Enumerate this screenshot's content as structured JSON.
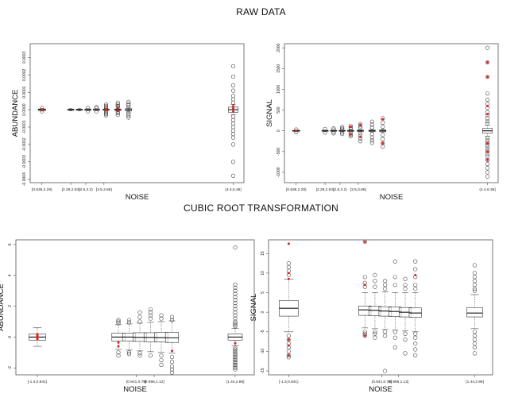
{
  "headings": {
    "top": "RAW DATA",
    "bottom": "CUBIC ROOT TRANSFORMATION"
  },
  "chart_data": [
    {
      "type": "boxplot",
      "panel": "raw-abundance",
      "xlabel": "NOISE",
      "ylabel": "ABUNDANCE",
      "ylim": [
        -0.00042,
        0.00038
      ],
      "yticks": [
        -0.0004,
        -0.0003,
        -0.0002,
        -0.0001,
        0,
        0.0001,
        0.0002,
        0.0003
      ],
      "ytick_labels": [
        "-0.0004",
        "-0.0003",
        "-0.0002",
        "-0.0001",
        "0.0000",
        "0.0001",
        "0.0002",
        "0.0003"
      ],
      "xlim": [
        0,
        10
      ],
      "xtick_labels": [
        {
          "x": 0.55,
          "label": "[0.636,2.29)"
        },
        {
          "x": 1.9,
          "label": "[2.29,2.63)"
        },
        {
          "x": 2.6,
          "label": "[2.6,3.2)"
        },
        {
          "x": 3.45,
          "label": "[3.5,3.86]"
        },
        {
          "x": 9.5,
          "label": "(4.4,6.36]"
        }
      ],
      "boxes": [
        {
          "x": 0.55,
          "q1": -4e-06,
          "median": 0,
          "q3": 4e-06,
          "wlo": -8e-06,
          "whi": 8e-06,
          "w": 0.35
        },
        {
          "x": 1.9,
          "q1": -3e-06,
          "median": 0,
          "q3": 3e-06,
          "wlo": -6e-06,
          "whi": 6e-06,
          "w": 0.3
        },
        {
          "x": 2.3,
          "q1": -3e-06,
          "median": 0,
          "q3": 3e-06,
          "wlo": -6e-06,
          "whi": 6e-06,
          "w": 0.3
        },
        {
          "x": 2.7,
          "q1": -3e-06,
          "median": 0,
          "q3": 3e-06,
          "wlo": -6e-06,
          "whi": 6e-06,
          "w": 0.3
        },
        {
          "x": 3.1,
          "q1": -3e-06,
          "median": 0,
          "q3": 3e-06,
          "wlo": -6e-06,
          "whi": 6e-06,
          "w": 0.3
        },
        {
          "x": 3.55,
          "q1": -3e-06,
          "median": 0,
          "q3": 3e-06,
          "wlo": -6e-06,
          "whi": 6e-06,
          "w": 0.3
        },
        {
          "x": 4.1,
          "q1": -4e-06,
          "median": 0,
          "q3": 4e-06,
          "wlo": -8e-06,
          "whi": 8e-06,
          "w": 0.3
        },
        {
          "x": 4.6,
          "q1": -6e-06,
          "median": 0,
          "q3": 6e-06,
          "wlo": -1e-05,
          "whi": 1e-05,
          "w": 0.3
        },
        {
          "x": 9.5,
          "q1": -1.5e-05,
          "median": 0,
          "q3": 1.5e-05,
          "wlo": -3e-05,
          "whi": 3e-05,
          "w": 0.45
        }
      ],
      "outliers": [
        {
          "x": 0.55,
          "y": [
            1e-05,
            -1e-05
          ]
        },
        {
          "x": 2.7,
          "y": [
            1e-05,
            -1e-05
          ]
        },
        {
          "x": 3.1,
          "y": [
            1.5e-05,
            8e-06,
            -1e-05
          ]
        },
        {
          "x": 3.55,
          "y": [
            3e-05,
            2.2e-05,
            1.5e-05,
            8e-06,
            -1e-05,
            -1.8e-05,
            -2.5e-05,
            -3.2e-05
          ]
        },
        {
          "x": 4.1,
          "y": [
            4e-05,
            3e-05,
            2.2e-05,
            1.5e-05,
            -1.2e-05,
            -2e-05,
            -3e-05
          ]
        },
        {
          "x": 4.6,
          "y": [
            4.5e-05,
            3.5e-05,
            2.5e-05,
            1.5e-05,
            -1.5e-05,
            -2.5e-05,
            -3.5e-05,
            -4.5e-05
          ]
        },
        {
          "x": 9.5,
          "y": [
            0.00025,
            0.00019,
            0.00014,
            0.00011,
            8e-05,
            6e-05,
            4e-05,
            -4e-05,
            -6e-05,
            -8e-05,
            -0.0001,
            -0.00012,
            -0.00014,
            -0.00016,
            -0.0002,
            -0.0003,
            -0.00038
          ]
        }
      ],
      "red_points": [
        {
          "x": 0.55,
          "y": [
            0
          ]
        },
        {
          "x": 3.55,
          "y": [
            5e-06,
            -5e-06
          ]
        },
        {
          "x": 4.1,
          "y": [
            1.2e-05,
            -8e-06
          ]
        },
        {
          "x": 9.5,
          "y": [
            2e-05,
            8e-06,
            -1e-05
          ]
        }
      ]
    },
    {
      "type": "boxplot",
      "panel": "raw-signal",
      "xlabel": "NOISE",
      "ylabel": "SIGNAL",
      "ylim": [
        -1250,
        2100
      ],
      "yticks": [
        -1000,
        -500,
        0,
        500,
        1000,
        1500,
        2000
      ],
      "ytick_labels": [
        "-1000",
        "-500",
        "0",
        "500",
        "1000",
        "1500",
        "2000"
      ],
      "xlim": [
        0,
        10
      ],
      "xtick_labels": [
        {
          "x": 0.55,
          "label": "[0.636,2.29)"
        },
        {
          "x": 1.9,
          "label": "[2.29,2.63)"
        },
        {
          "x": 2.6,
          "label": "[2.6,3.2)"
        },
        {
          "x": 3.45,
          "label": "[3.5,3.86]"
        },
        {
          "x": 9.5,
          "label": "(4.4,6.36]"
        }
      ],
      "boxes": [
        {
          "x": 0.55,
          "q1": -10,
          "median": 0,
          "q3": 10,
          "wlo": -20,
          "whi": 20,
          "w": 0.35
        },
        {
          "x": 1.9,
          "q1": -10,
          "median": 0,
          "q3": 10,
          "wlo": -20,
          "whi": 20,
          "w": 0.3
        },
        {
          "x": 2.3,
          "q1": -10,
          "median": 0,
          "q3": 10,
          "wlo": -20,
          "whi": 20,
          "w": 0.3
        },
        {
          "x": 2.7,
          "q1": -10,
          "median": 0,
          "q3": 10,
          "wlo": -20,
          "whi": 20,
          "w": 0.3
        },
        {
          "x": 3.1,
          "q1": -12,
          "median": 0,
          "q3": 12,
          "wlo": -25,
          "whi": 25,
          "w": 0.3
        },
        {
          "x": 3.55,
          "q1": -15,
          "median": 0,
          "q3": 15,
          "wlo": -30,
          "whi": 30,
          "w": 0.3
        },
        {
          "x": 4.1,
          "q1": -18,
          "median": 0,
          "q3": 18,
          "wlo": -35,
          "whi": 35,
          "w": 0.3
        },
        {
          "x": 4.6,
          "q1": -22,
          "median": 0,
          "q3": 22,
          "wlo": -40,
          "whi": 40,
          "w": 0.3
        },
        {
          "x": 9.5,
          "q1": -60,
          "median": 0,
          "q3": 60,
          "wlo": -130,
          "whi": 130,
          "w": 0.45
        }
      ],
      "outliers": [
        {
          "x": 0.55,
          "y": [
            30,
            -30
          ]
        },
        {
          "x": 1.9,
          "y": [
            45,
            -40
          ]
        },
        {
          "x": 2.3,
          "y": [
            60,
            30,
            -35,
            -60
          ]
        },
        {
          "x": 2.7,
          "y": [
            90,
            55,
            30,
            -40,
            -75
          ]
        },
        {
          "x": 3.1,
          "y": [
            120,
            80,
            45,
            -45,
            -90,
            -130
          ]
        },
        {
          "x": 3.55,
          "y": [
            160,
            110,
            60,
            -60,
            -120,
            -180,
            -250
          ]
        },
        {
          "x": 4.1,
          "y": [
            220,
            150,
            80,
            -80,
            -160,
            -230,
            -290
          ]
        },
        {
          "x": 4.6,
          "y": [
            300,
            200,
            100,
            -100,
            -200,
            -300,
            -380
          ]
        },
        {
          "x": 9.5,
          "y": [
            2000,
            1650,
            1300,
            900,
            750,
            650,
            550,
            450,
            380,
            300,
            230,
            170,
            -170,
            -230,
            -280,
            -330,
            -380,
            -440,
            -500,
            -560,
            -620,
            -700,
            -800,
            -900,
            -1000,
            -1100
          ]
        }
      ],
      "red_points": [
        {
          "x": 0.55,
          "y": [
            0
          ]
        },
        {
          "x": 3.1,
          "y": [
            100,
            -90
          ]
        },
        {
          "x": 3.55,
          "y": [
            150,
            -150
          ]
        },
        {
          "x": 4.6,
          "y": [
            280,
            -300
          ]
        },
        {
          "x": 9.5,
          "y": [
            1650,
            1300,
            600,
            400,
            -300,
            -500,
            -700
          ]
        }
      ]
    },
    {
      "type": "boxplot",
      "panel": "cubic-abundance",
      "xlabel": "NOISE",
      "ylabel": "ABUNDANCE",
      "ylim": [
        -2.45,
        6.3
      ],
      "yticks": [
        -2,
        0,
        2,
        4,
        6
      ],
      "ytick_labels": [
        "-2",
        "0",
        "2",
        "4",
        "6"
      ],
      "xlim": [
        0,
        10
      ],
      "xtick_labels": [
        {
          "x": 0.9,
          "label": "[-1.3,0.841)"
        },
        {
          "x": 5.05,
          "label": "(0.841,0.79]"
        },
        {
          "x": 5.8,
          "label": "(0.996,1.12]"
        },
        {
          "x": 9.2,
          "label": "(1.44,2.86]"
        }
      ],
      "boxes": [
        {
          "x": 0.9,
          "q1": -0.2,
          "median": 0,
          "q3": 0.2,
          "wlo": -0.6,
          "whi": 0.6,
          "w": 0.7
        },
        {
          "x": 4.3,
          "q1": -0.25,
          "median": 0,
          "q3": 0.25,
          "wlo": -0.8,
          "whi": 0.8,
          "w": 0.55
        },
        {
          "x": 4.75,
          "q1": -0.25,
          "median": 0,
          "q3": 0.25,
          "wlo": -0.85,
          "whi": 0.85,
          "w": 0.55
        },
        {
          "x": 5.2,
          "q1": -0.28,
          "median": -0.02,
          "q3": 0.28,
          "wlo": -0.9,
          "whi": 0.9,
          "w": 0.55
        },
        {
          "x": 5.65,
          "q1": -0.3,
          "median": -0.03,
          "q3": 0.28,
          "wlo": -0.95,
          "whi": 0.95,
          "w": 0.55
        },
        {
          "x": 6.1,
          "q1": -0.32,
          "median": -0.04,
          "q3": 0.3,
          "wlo": -1.0,
          "whi": 1.0,
          "w": 0.55
        },
        {
          "x": 6.55,
          "q1": -0.35,
          "median": -0.05,
          "q3": 0.3,
          "wlo": -1.05,
          "whi": 1.05,
          "w": 0.55
        },
        {
          "x": 9.2,
          "q1": -0.2,
          "median": 0,
          "q3": 0.2,
          "wlo": -0.55,
          "whi": 0.55,
          "w": 0.6
        }
      ],
      "outliers": [
        {
          "x": 4.3,
          "y": [
            1.1,
            1.0,
            0.9,
            -1.0,
            -1.2
          ]
        },
        {
          "x": 4.75,
          "y": [
            1.1,
            0.95,
            -1.0,
            -1.1
          ]
        },
        {
          "x": 5.2,
          "y": [
            1.6,
            1.3,
            1.0,
            -1.05,
            -1.2
          ]
        },
        {
          "x": 5.65,
          "y": [
            1.8,
            1.6,
            1.4,
            1.2,
            -1.2
          ]
        },
        {
          "x": 6.1,
          "y": [
            1.4,
            1.2,
            -1.2,
            -1.5,
            -1.8
          ]
        },
        {
          "x": 6.55,
          "y": [
            1.3,
            1.1,
            -1.3,
            -1.6,
            -1.9,
            -2.1,
            -2.3
          ]
        },
        {
          "x": 9.2,
          "y": [
            5.8,
            3.4,
            3.2,
            3.0,
            2.8,
            2.6,
            2.4,
            2.2,
            2.0,
            1.8,
            1.6,
            1.4,
            1.2,
            1.0,
            0.9,
            0.8,
            0.7,
            -0.7,
            -0.8,
            -0.9,
            -1.0,
            -1.1,
            -1.2,
            -1.3,
            -1.4,
            -1.5,
            -1.6,
            -1.7,
            -1.8,
            -1.9,
            -2.0,
            -2.1
          ]
        }
      ],
      "red_points": [
        {
          "x": 0.9,
          "y": [
            0.18,
            0.1,
            0.04,
            -0.02,
            -0.08,
            -0.14
          ]
        },
        {
          "x": 4.3,
          "y": [
            -0.35,
            -0.6
          ]
        },
        {
          "x": 6.55,
          "y": [
            -0.9
          ]
        },
        {
          "x": 9.2,
          "y": [
            -0.4
          ]
        }
      ]
    },
    {
      "type": "boxplot",
      "panel": "cubic-signal",
      "xlabel": "NOISE",
      "ylabel": "SIGNAL",
      "ylim": [
        -16,
        18.5
      ],
      "yticks": [
        -15,
        -10,
        -5,
        0,
        5,
        10,
        15
      ],
      "ytick_labels": [
        "-15",
        "-10",
        "-5",
        "0",
        "5",
        "10",
        "15"
      ],
      "xlim": [
        0,
        10
      ],
      "xtick_labels": [
        {
          "x": 0.9,
          "label": "[-1.3,0.841)"
        },
        {
          "x": 5.05,
          "label": "(0.841,0.79]"
        },
        {
          "x": 5.8,
          "label": "(0.996,1.12]"
        },
        {
          "x": 9.2,
          "label": "(1.44,2.86]"
        }
      ],
      "boxes": [
        {
          "x": 0.9,
          "q1": -1.0,
          "median": 1.0,
          "q3": 3.0,
          "wlo": -5.0,
          "whi": 8.5,
          "w": 0.85
        },
        {
          "x": 4.3,
          "q1": -0.8,
          "median": 0.6,
          "q3": 1.6,
          "wlo": -4.0,
          "whi": 5.0,
          "w": 0.55
        },
        {
          "x": 4.75,
          "q1": -0.9,
          "median": 0.5,
          "q3": 1.5,
          "wlo": -4.2,
          "whi": 5.0,
          "w": 0.55
        },
        {
          "x": 5.2,
          "q1": -1.0,
          "median": 0.3,
          "q3": 1.4,
          "wlo": -4.4,
          "whi": 5.2,
          "w": 0.55
        },
        {
          "x": 5.65,
          "q1": -1.1,
          "median": 0.2,
          "q3": 1.3,
          "wlo": -4.6,
          "whi": 5.0,
          "w": 0.55
        },
        {
          "x": 6.1,
          "q1": -1.2,
          "median": 0.0,
          "q3": 1.2,
          "wlo": -4.8,
          "whi": 5.0,
          "w": 0.55
        },
        {
          "x": 6.55,
          "q1": -1.3,
          "median": -0.2,
          "q3": 1.1,
          "wlo": -5.0,
          "whi": 5.0,
          "w": 0.55
        },
        {
          "x": 9.2,
          "q1": -1.2,
          "median": -0.2,
          "q3": 1.2,
          "wlo": -4.2,
          "whi": 4.5,
          "w": 0.7
        }
      ],
      "outliers": [
        {
          "x": 0.9,
          "y": [
            12.5,
            11.5,
            10.5,
            9.5,
            -6.0,
            -7.0,
            -8.0,
            -9.0,
            -10.0,
            -11.0,
            -11.5
          ]
        },
        {
          "x": 4.3,
          "y": [
            18.0,
            9.0,
            7.5,
            6.5,
            -5.0,
            -5.5,
            -6.0
          ]
        },
        {
          "x": 4.75,
          "y": [
            9.5,
            8.0,
            6.5,
            -5.0,
            -5.5,
            -6.5
          ]
        },
        {
          "x": 5.2,
          "y": [
            8.0,
            7.0,
            6.0,
            -5.0,
            -6.0,
            -15.0
          ]
        },
        {
          "x": 5.65,
          "y": [
            13.0,
            9.0,
            7.0,
            -5.0,
            -6.5,
            -9.0
          ]
        },
        {
          "x": 6.1,
          "y": [
            8.5,
            7.0,
            6.0,
            -5.5,
            -7.0,
            -10.5
          ]
        },
        {
          "x": 6.55,
          "y": [
            13.0,
            11.0,
            9.0,
            7.0,
            6.0,
            -5.5,
            -6.5,
            -8.0,
            -9.5,
            -11.0
          ]
        },
        {
          "x": 9.2,
          "y": [
            12.0,
            10.0,
            9.0,
            8.0,
            7.0,
            6.0,
            5.5,
            -5.0,
            -6.0,
            -7.0,
            -8.0,
            -9.0,
            -10.5
          ]
        }
      ],
      "red_points": [
        {
          "x": 0.9,
          "y": [
            17.5,
            10.0,
            8.5,
            -7.0,
            -8.5,
            -11.0
          ]
        },
        {
          "x": 4.3,
          "y": [
            18.0,
            7.0,
            -6.0
          ]
        },
        {
          "x": 6.55,
          "y": [
            9.5
          ]
        }
      ]
    }
  ]
}
